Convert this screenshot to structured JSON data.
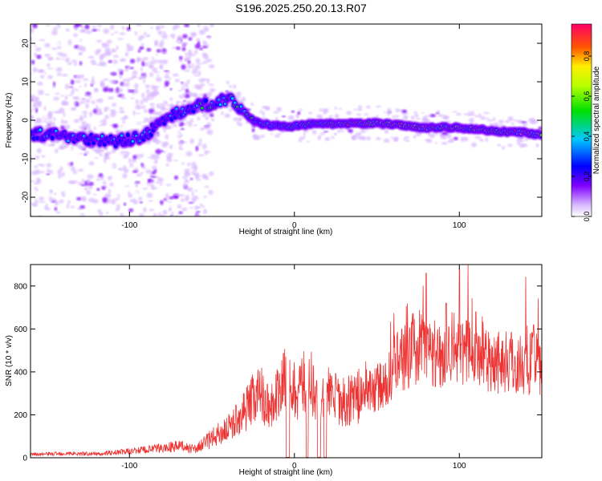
{
  "title": "S196.2025.250.20.13.R07",
  "colors": {
    "snr_line": "#ee3333",
    "axes": "#000000",
    "background": "#ffffff"
  },
  "chart_data": [
    {
      "type": "heatmap",
      "name": "spectrogram",
      "xlabel": "Height of straight line (km)",
      "ylabel": "Frequency (Hz)",
      "xlim": [
        -160,
        150
      ],
      "ylim": [
        -25,
        25
      ],
      "xticks": [
        -100,
        0,
        100
      ],
      "xtick_labels": [
        "-100",
        "0",
        "100"
      ],
      "yticks": [
        20,
        10,
        0,
        -10,
        -20
      ],
      "ytick_labels": [
        "20",
        "10",
        "0",
        "-10",
        "-20"
      ],
      "colorbar": {
        "label": "Normalized spectral amplitude",
        "range": [
          0,
          0.96
        ],
        "ticks": [
          0.0,
          0.2,
          0.4,
          0.6,
          0.8
        ],
        "tick_labels": [
          "0.0",
          "0.2",
          "0.4",
          "0.6",
          "0.8"
        ]
      },
      "ridge": {
        "description": "peak frequency track",
        "x": [
          -160,
          -140,
          -120,
          -110,
          -100,
          -90,
          -80,
          -70,
          -60,
          -50,
          -45,
          -40,
          -35,
          -30,
          -25,
          -20,
          -10,
          0,
          10,
          20,
          30,
          40,
          50,
          60,
          70,
          80,
          90,
          100,
          110,
          120,
          130,
          140,
          150
        ],
        "y": [
          -3.5,
          -4,
          -5,
          -5.5,
          -5,
          -4,
          0,
          2,
          3.5,
          4.5,
          5,
          5.5,
          4,
          2,
          0,
          -1,
          -1.5,
          -1.5,
          -1,
          -1,
          -1,
          -0.8,
          -0.8,
          -1,
          -1.5,
          -2,
          -1.8,
          -2,
          -2.3,
          -2.8,
          -3,
          -3.2,
          -4
        ]
      }
    },
    {
      "type": "line",
      "name": "snr",
      "xlabel": "Height of straight line (km)",
      "ylabel": "SNR (10 * v/v)",
      "xlim": [
        -160,
        150
      ],
      "ylim": [
        0,
        900
      ],
      "xticks": [
        -100,
        0,
        100
      ],
      "xtick_labels": [
        "-100",
        "0",
        "100"
      ],
      "yticks": [
        0,
        200,
        400,
        600,
        800
      ],
      "ytick_labels": [
        "0",
        "200",
        "400",
        "600",
        "800"
      ],
      "series": [
        {
          "name": "SNR",
          "x": [
            -160,
            -140,
            -120,
            -100,
            -80,
            -70,
            -60,
            -50,
            -40,
            -30,
            -25,
            -20,
            -15,
            -10,
            -5,
            0,
            5,
            10,
            15,
            20,
            30,
            40,
            50,
            55,
            60,
            65,
            70,
            75,
            80,
            85,
            90,
            95,
            100,
            105,
            110,
            120,
            130,
            140,
            150
          ],
          "values": [
            15,
            20,
            18,
            30,
            45,
            55,
            40,
            90,
            140,
            220,
            280,
            300,
            230,
            300,
            360,
            310,
            340,
            360,
            240,
            300,
            260,
            290,
            330,
            330,
            420,
            450,
            500,
            520,
            500,
            490,
            470,
            520,
            530,
            480,
            480,
            460,
            450,
            430,
            440
          ]
        }
      ],
      "gaps": [
        [
          -5,
          -3
        ],
        [
          7,
          8.5
        ],
        [
          14,
          16
        ],
        [
          18,
          19.5
        ]
      ],
      "peaks": [
        [
          80,
          860
        ],
        [
          100,
          880
        ],
        [
          92,
          720
        ],
        [
          65,
          600
        ],
        [
          110,
          680
        ],
        [
          145,
          620
        ]
      ]
    }
  ]
}
